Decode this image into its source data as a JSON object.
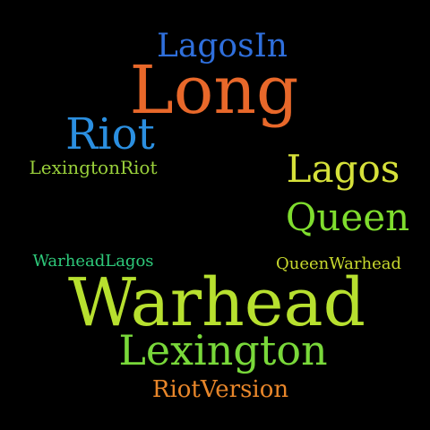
{
  "background": "#000000",
  "words": {
    "lagosin": {
      "text": "LagosIn",
      "color": "#2f6fdc"
    },
    "long": {
      "text": "Long",
      "color": "#e8682a"
    },
    "riot": {
      "text": "Riot",
      "color": "#2b8fe0"
    },
    "lexingtonriot": {
      "text": "LexingtonRiot",
      "color": "#9ad13b"
    },
    "lagos": {
      "text": "Lagos",
      "color": "#d6e13a"
    },
    "queen": {
      "text": "Queen",
      "color": "#7fdd2e"
    },
    "warheadlagos": {
      "text": "WarheadLagos",
      "color": "#2ec97a"
    },
    "queenwarhead": {
      "text": "QueenWarhead",
      "color": "#c8d92e"
    },
    "warhead": {
      "text": "Warhead",
      "color": "#b7e02f"
    },
    "lexington": {
      "text": "Lexington",
      "color": "#79d83a"
    },
    "riotversion": {
      "text": "RiotVersion",
      "color": "#e8862a"
    }
  }
}
